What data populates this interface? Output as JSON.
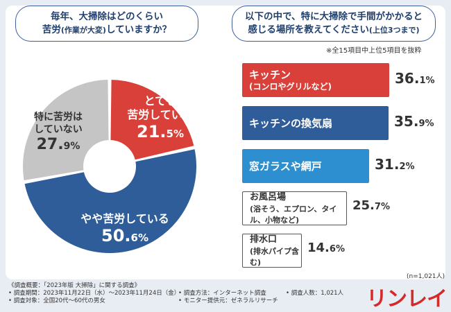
{
  "questions": {
    "left": {
      "line1": "毎年、大掃除はどのくらい",
      "line2a": "苦労",
      "line2b": "(作業が大変)",
      "line2c": "していますか？"
    },
    "right": {
      "line1": "以下の中で、特に大掃除で手間がかかると",
      "line2a": "感じる場所を教えてください",
      "line2b": "(上位3つまで)"
    }
  },
  "footnote": "※全15項目中上位5項目を抜粋",
  "n_label": "(n=1,021人)",
  "chart_data": [
    {
      "type": "pie",
      "title": "毎年、大掃除はどのくらい苦労(作業が大変)していますか？",
      "slices": [
        {
          "label_line1": "とても",
          "label_line2": "苦労している",
          "value": 21.5,
          "big": "21.",
          "small": "5",
          "unit": "%",
          "color": "#d9403a"
        },
        {
          "label_line1": "やや苦労している",
          "label_line2": "",
          "value": 50.6,
          "big": "50.",
          "small": "6",
          "unit": "%",
          "color": "#2f5d9a"
        },
        {
          "label_line1": "特に苦労は",
          "label_line2": "していない",
          "value": 27.9,
          "big": "27.",
          "small": "9",
          "unit": "%",
          "color": "#c5c5c5"
        }
      ]
    },
    {
      "type": "bar",
      "title": "以下の中で、特に大掃除で手間がかかると感じる場所を教えてください(上位3つまで)",
      "xlim": [
        0,
        40
      ],
      "bars": [
        {
          "line1": "キッチン",
          "line2": "(コンロやグリルなど)",
          "value": 36.1,
          "big": "36.",
          "small": "1",
          "unit": "%",
          "color": "#d9403a",
          "style": "solid"
        },
        {
          "line1": "キッチンの換気扇",
          "line2": "",
          "value": 35.9,
          "big": "35.",
          "small": "9",
          "unit": "%",
          "color": "#2f5d9a",
          "style": "solid"
        },
        {
          "line1": "窓ガラスや網戸",
          "line2": "",
          "value": 31.2,
          "big": "31.",
          "small": "2",
          "unit": "%",
          "color": "#2e8fd0",
          "style": "solid"
        },
        {
          "line1": "お風呂場",
          "line2": "(浴そう、エプロン、タイル、小物など)",
          "value": 25.7,
          "big": "25.",
          "small": "7",
          "unit": "%",
          "color": "#ffffff",
          "style": "light"
        },
        {
          "line1": "排水口",
          "line2": "(排水パイプ含む)",
          "value": 14.6,
          "big": "14.",
          "small": "6",
          "unit": "%",
          "color": "#ffffff",
          "style": "light"
        }
      ]
    }
  ],
  "survey": {
    "r1a": "《調査概要：「2023年版 大掃除」に関する調査》",
    "r2a": "• 調査期間：2023年11月22日（水）〜2023年11月24日（金）",
    "r2b": "• 調査方法：インターネット調査",
    "r2c": "• 調査人数：1,021人",
    "r3a": "• 調査対象：全国20代〜60代の男女",
    "r3b": "• モニター提供元：ゼネラルリサーチ"
  },
  "brand": "リンレイ"
}
